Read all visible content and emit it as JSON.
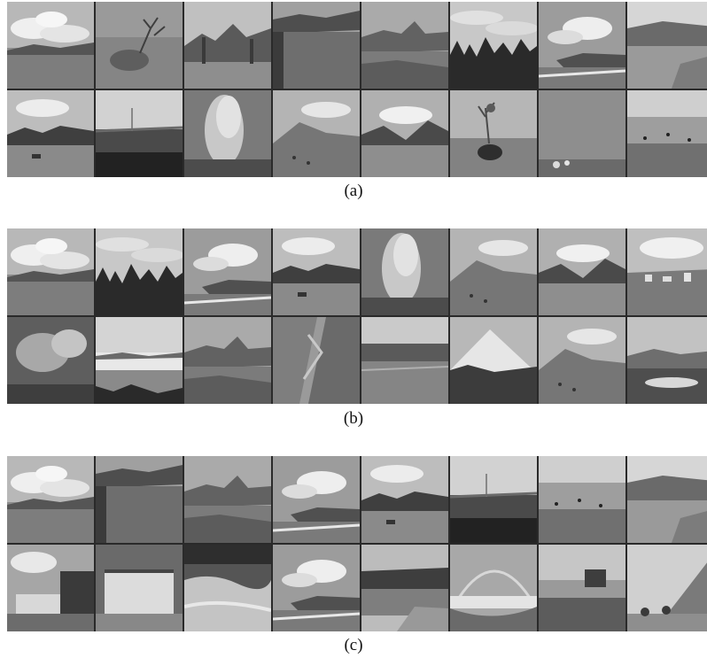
{
  "panels": [
    {
      "label": "(a)",
      "tiles": [
        {
          "scene": "lake-clouds"
        },
        {
          "scene": "elk-grass"
        },
        {
          "scene": "valley-rocks"
        },
        {
          "scene": "lake-cliff"
        },
        {
          "scene": "rocky-shore"
        },
        {
          "scene": "forest-cloudy"
        },
        {
          "scene": "coast-clouds"
        },
        {
          "scene": "hills-plain"
        },
        {
          "scene": "meadow-trees"
        },
        {
          "scene": "dark-lake"
        },
        {
          "scene": "geyser-steam"
        },
        {
          "scene": "hillside"
        },
        {
          "scene": "mountain-valley"
        },
        {
          "scene": "bison-tree"
        },
        {
          "scene": "flat-sky"
        },
        {
          "scene": "lake-birds"
        }
      ]
    },
    {
      "label": "(b)",
      "tiles": [
        {
          "scene": "lake-clouds"
        },
        {
          "scene": "forest-cloudy"
        },
        {
          "scene": "coast-clouds"
        },
        {
          "scene": "meadow-trees"
        },
        {
          "scene": "geyser-steam"
        },
        {
          "scene": "hillside"
        },
        {
          "scene": "mountain-valley"
        },
        {
          "scene": "town-clouds"
        },
        {
          "scene": "steam-vents"
        },
        {
          "scene": "foggy-lake"
        },
        {
          "scene": "rocky-shore"
        },
        {
          "scene": "cliff-texture"
        },
        {
          "scene": "marsh"
        },
        {
          "scene": "snow-mountain"
        },
        {
          "scene": "hillside"
        },
        {
          "scene": "snowy-plain"
        }
      ]
    },
    {
      "label": "(c)",
      "tiles": [
        {
          "scene": "lake-clouds"
        },
        {
          "scene": "lake-cliff"
        },
        {
          "scene": "rocky-shore"
        },
        {
          "scene": "coast-clouds"
        },
        {
          "scene": "meadow-trees"
        },
        {
          "scene": "dark-lake"
        },
        {
          "scene": "lake-birds"
        },
        {
          "scene": "hills-plain"
        },
        {
          "scene": "waterfall-trees"
        },
        {
          "scene": "waterfall"
        },
        {
          "scene": "rapids"
        },
        {
          "scene": "coast-clouds"
        },
        {
          "scene": "river-bank"
        },
        {
          "scene": "rainbow-shore"
        },
        {
          "scene": "shore-hut"
        },
        {
          "scene": "mountain-slope"
        }
      ]
    }
  ],
  "colors": {
    "background": "#ffffff",
    "grid": "#2a2a2a",
    "caption": "#111111"
  }
}
